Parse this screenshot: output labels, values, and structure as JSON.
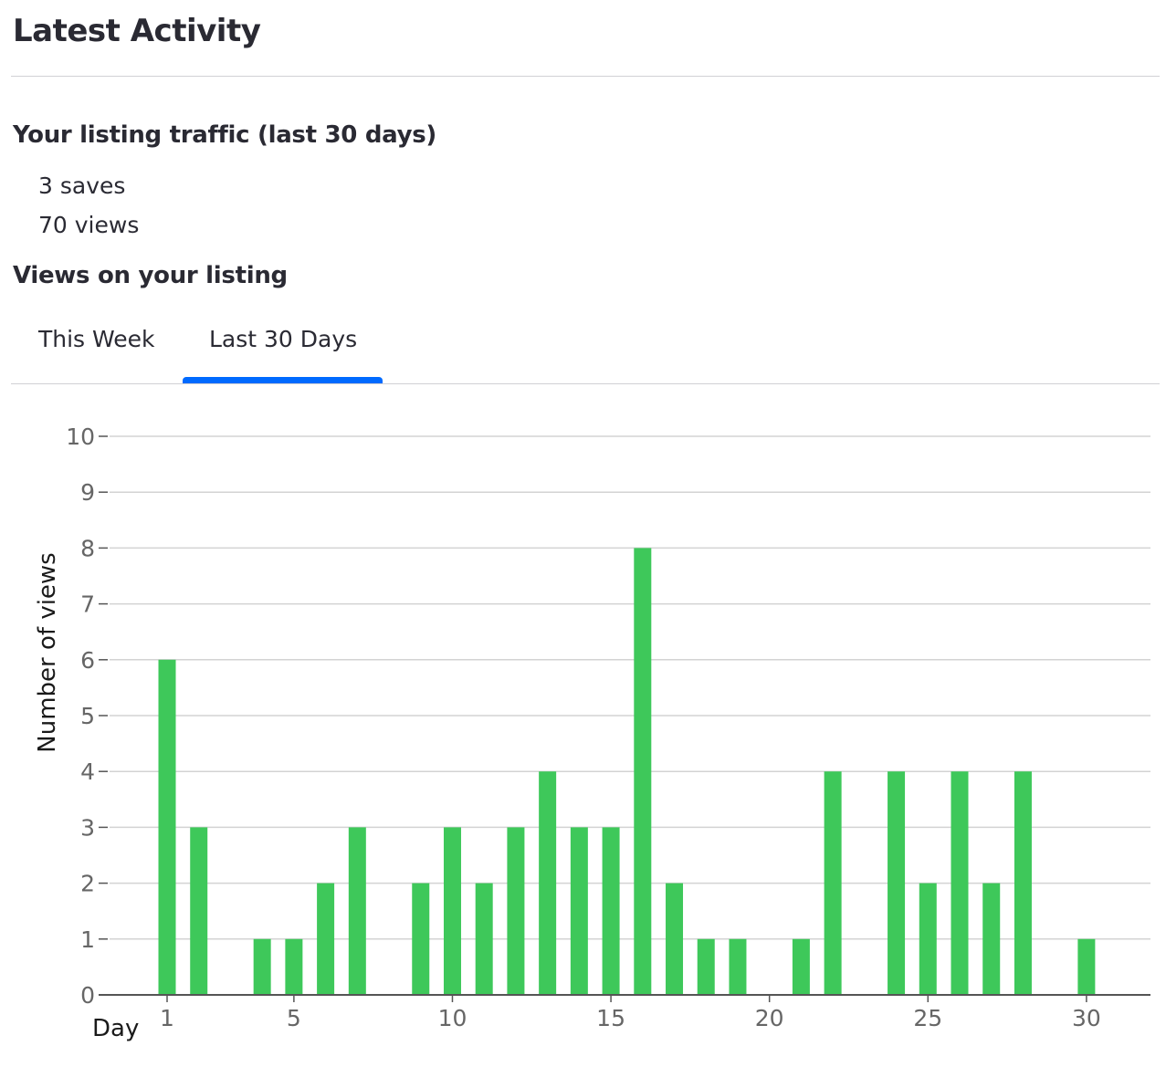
{
  "header": {
    "title": "Latest Activity"
  },
  "traffic": {
    "title": "Your listing traffic (last 30 days)",
    "saves": "3 saves",
    "views": "70 views"
  },
  "views_section": {
    "title": "Views on your listing",
    "tabs": [
      {
        "label": "This Week",
        "active": false
      },
      {
        "label": "Last 30 Days",
        "active": true
      }
    ]
  },
  "colors": {
    "bar": "#3ec85a",
    "grid": "#d3d3d3",
    "axis": "#555555",
    "tab_active": "#006aff"
  },
  "chart_data": {
    "type": "bar",
    "xlabel": "Day",
    "ylabel": "Number of views",
    "x": [
      1,
      2,
      3,
      4,
      5,
      6,
      7,
      8,
      9,
      10,
      11,
      12,
      13,
      14,
      15,
      16,
      17,
      18,
      19,
      20,
      21,
      22,
      23,
      24,
      25,
      26,
      27,
      28,
      29,
      30
    ],
    "values": [
      6,
      3,
      0,
      1,
      1,
      2,
      3,
      0,
      2,
      3,
      2,
      3,
      4,
      3,
      3,
      8,
      2,
      1,
      1,
      0,
      1,
      4,
      0,
      4,
      2,
      4,
      2,
      4,
      0,
      1
    ],
    "xticks": [
      1,
      5,
      10,
      15,
      20,
      25,
      30
    ],
    "yticks": [
      0,
      1,
      2,
      3,
      4,
      5,
      6,
      7,
      8,
      9,
      10
    ],
    "ylim": [
      0,
      10
    ],
    "grid": true
  }
}
